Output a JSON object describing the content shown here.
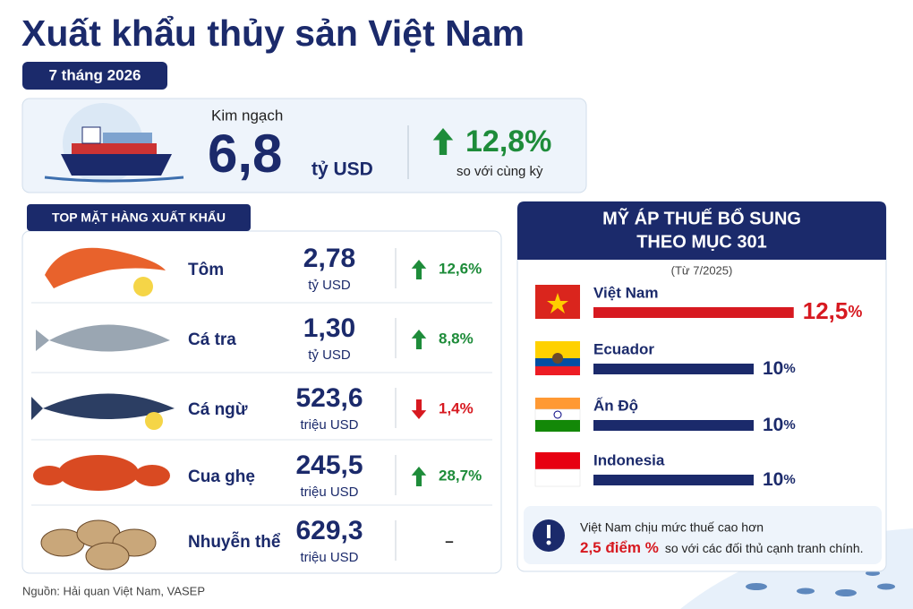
{
  "header": {
    "title": "Xuất khẩu thủy sản Việt Nam",
    "period": "7 tháng 2026"
  },
  "summary": {
    "label": "Kim ngạch",
    "value": "6,8",
    "unit": "tỷ USD",
    "change": "12,8%",
    "direction": "up",
    "change_note": "so với cùng kỳ"
  },
  "products": {
    "title": "TOP MẶT HÀNG XUẤT KHẨU",
    "rows": [
      {
        "name": "Tôm",
        "value": "2,78",
        "unit": "tỷ USD",
        "change": "12,6%",
        "direction": "up"
      },
      {
        "name": "Cá tra",
        "value": "1,30",
        "unit": "tỷ USD",
        "change": "8,8%",
        "direction": "up"
      },
      {
        "name": "Cá ngừ",
        "value": "523,6",
        "unit": "triệu USD",
        "change": "1,4%",
        "direction": "down"
      },
      {
        "name": "Cua ghẹ",
        "value": "245,5",
        "unit": "triệu USD",
        "change": "28,7%",
        "direction": "up"
      },
      {
        "name": "Nhuyễn thể",
        "value": "629,3",
        "unit": "triệu USD",
        "change": "–",
        "direction": null
      }
    ]
  },
  "tariffs": {
    "title_line1": "MỸ ÁP THUẾ BỔ SUNG",
    "title_line2": "THEO MỤC 301",
    "note": "(Từ 7/2025)",
    "countries": [
      {
        "name": "Việt Nam",
        "value": 12.5,
        "label": "12,5",
        "unit": "%",
        "color": "#d71920"
      },
      {
        "name": "Ecuador",
        "value": 10,
        "label": "10",
        "unit": "%",
        "color": "#1b2a6b"
      },
      {
        "name": "Ấn Độ",
        "value": 10,
        "label": "10",
        "unit": "%",
        "color": "#1b2a6b"
      },
      {
        "name": "Indonesia",
        "value": 10,
        "label": "10",
        "unit": "%",
        "color": "#1b2a6b"
      }
    ]
  },
  "callout": {
    "line1": "Việt Nam chịu mức thuế cao hơn",
    "highlight": "2,5 điểm %",
    "line2": "so với các đối thủ cạnh tranh chính."
  },
  "source": "Nguồn: Hải quan Việt Nam, VASEP"
}
